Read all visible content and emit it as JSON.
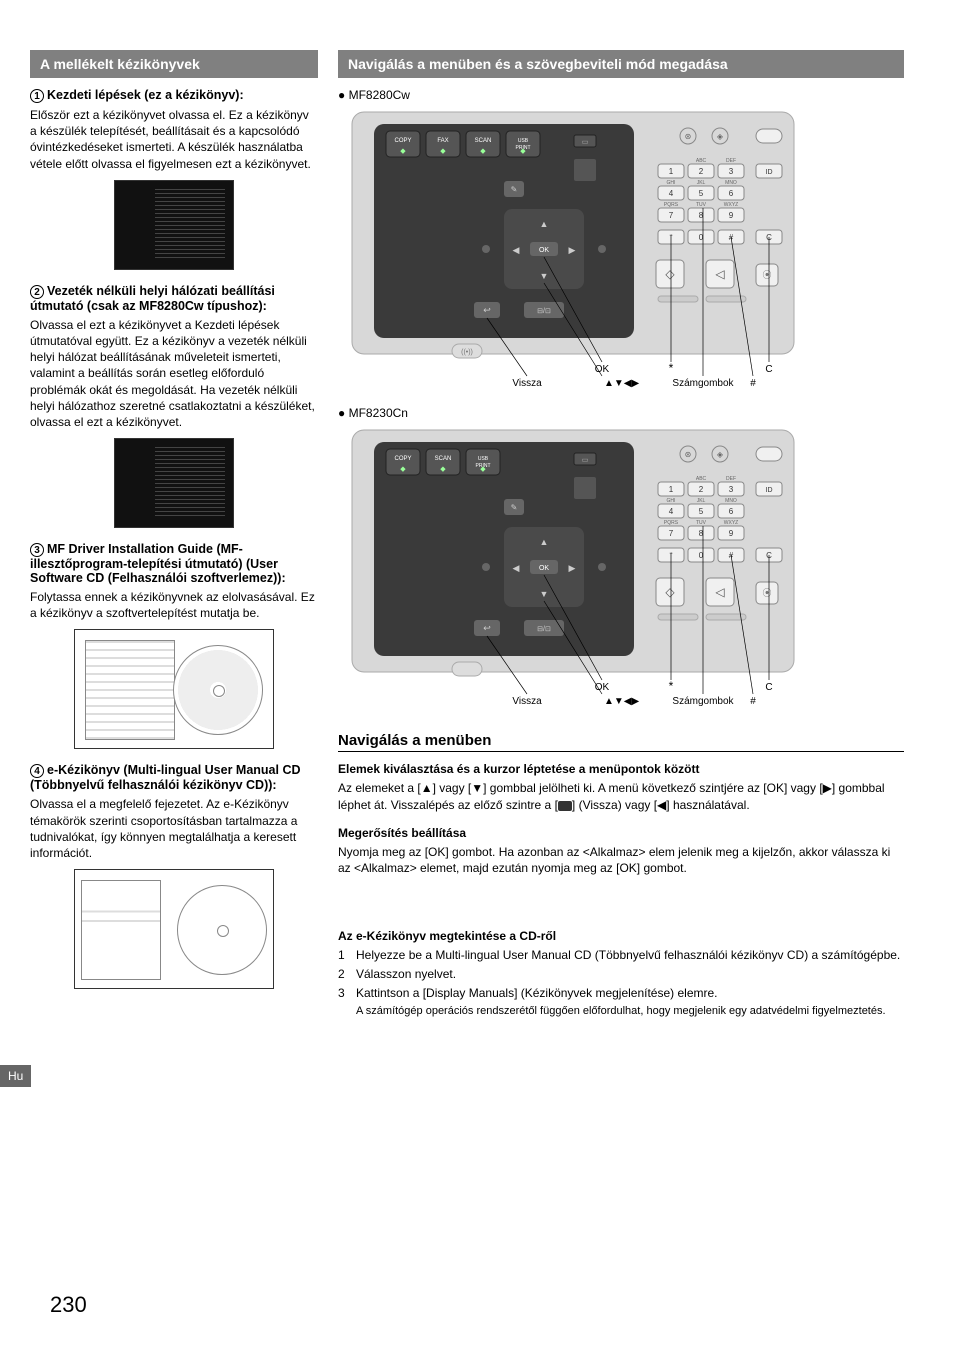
{
  "lang_tab": "Hu",
  "page_number": "230",
  "left": {
    "header": "A mellékelt kézikönyvek",
    "item1_title": "Kezdeti lépések (ez a kézikönyv):",
    "item1_text": "Először ezt a kézikönyvet olvassa el. Ez a kézikönyv a készülék telepítését, beállításait és a kapcsolódó óvintézkedéseket ismerteti. A készülék használatba vétele előtt olvassa el figyelmesen ezt a kézikönyvet.",
    "item2_title": "Vezeték nélküli helyi hálózati beállítási útmutató (csak az MF8280Cw típushoz):",
    "item2_text": "Olvassa el ezt a kézikönyvet a Kezdeti lépések útmutatóval együtt. Ez a kézikönyv a vezeték nélküli helyi hálózat beállításának műveleteit ismerteti, valamint a beállítás során esetleg előforduló problémák okát és megoldását. Ha vezeték nélküli helyi hálózathoz szeretné csatlakoztatni a készüléket, olvassa el ezt a kézikönyvet.",
    "item3_title": "MF Driver Installation Guide (MF-illesztőprogram-telepítési útmutató) (User Software CD (Felhasználói szoftverlemez)):",
    "item3_text": "Folytassa ennek a kézikönyvnek az elolvasásával. Ez a kézikönyv a szoftvertelepítést mutatja be.",
    "item4_title": "e-Kézikönyv (Multi-lingual User Manual CD (Többnyelvű felhasználói kézikönyv CD)):",
    "item4_text": "Olvassa el a megfelelő fejezetet. Az e-Kézikönyv témakörök szerinti csoportosításban tartalmazza a tudnivalókat, így könnyen megtalálhatja a keresett információt."
  },
  "right": {
    "header": "Navigálás a menüben és a szövegbeviteli mód megadása",
    "model1": "MF8280Cw",
    "model2": "MF8230Cn",
    "labels": {
      "ok": "OK",
      "vissza": "Vissza",
      "arrows": "▲▼◀▶",
      "star": "*",
      "szamgombok": "Számgombok",
      "hash": "#",
      "c": "C"
    },
    "nav_heading": "Navigálás a menüben",
    "para1_title": "Elemek kiválasztása és a kurzor léptetése a menüpontok között",
    "para1_text_a": "Az elemeket a [▲] vagy [▼] gombbal jelölheti ki. A menü következő szintjére az [OK] vagy [▶] gombbal léphet át. Visszalépés az előző szintre a [",
    "para1_text_b": "] (Vissza) vagy [◀] használatával.",
    "para2_title": "Megerősítés beállítása",
    "para2_text": "Nyomja meg az [OK] gombot. Ha azonban az <Alkalmaz> elem jelenik meg a kijelzőn, akkor válassza ki az <Alkalmaz> elemet, majd ezután nyomja meg az [OK] gombot.",
    "cd_title": "Az e-Kézikönyv megtekintése a CD-ről",
    "step1": "Helyezze be a Multi-lingual User Manual CD (Többnyelvű felhasználói kézikönyv CD) a számítógépbe.",
    "step2": "Válasszon nyelvet.",
    "step3": "Kattintson a [Display Manuals] (Kézikönyvek megjelenítése) elemre.",
    "note": "A számítógép operációs rendszerétől függően előfordulhat, hogy megjelenik egy adatvédelmi figyelmeztetés."
  },
  "panel": {
    "copy": "COPY",
    "fax": "FAX",
    "scan": "SCAN",
    "usb": "USB\nPRINT",
    "keys": [
      "1",
      "2",
      "3",
      "4",
      "5",
      "6",
      "7",
      "8",
      "9",
      "*",
      "0",
      "#"
    ],
    "keylabels": [
      "",
      "ABC",
      "DEF",
      "GHI",
      "JKL",
      "MNO",
      "PQRS",
      "TUV",
      "WXYZ",
      "",
      "",
      ""
    ],
    "id": "ID",
    "c": "C",
    "ok": "OK"
  },
  "colors": {
    "header_bg": "#808080",
    "panel_dark": "#3a3a3a",
    "panel_light": "#d8d8d8",
    "key_fill": "#f0f0f0"
  }
}
